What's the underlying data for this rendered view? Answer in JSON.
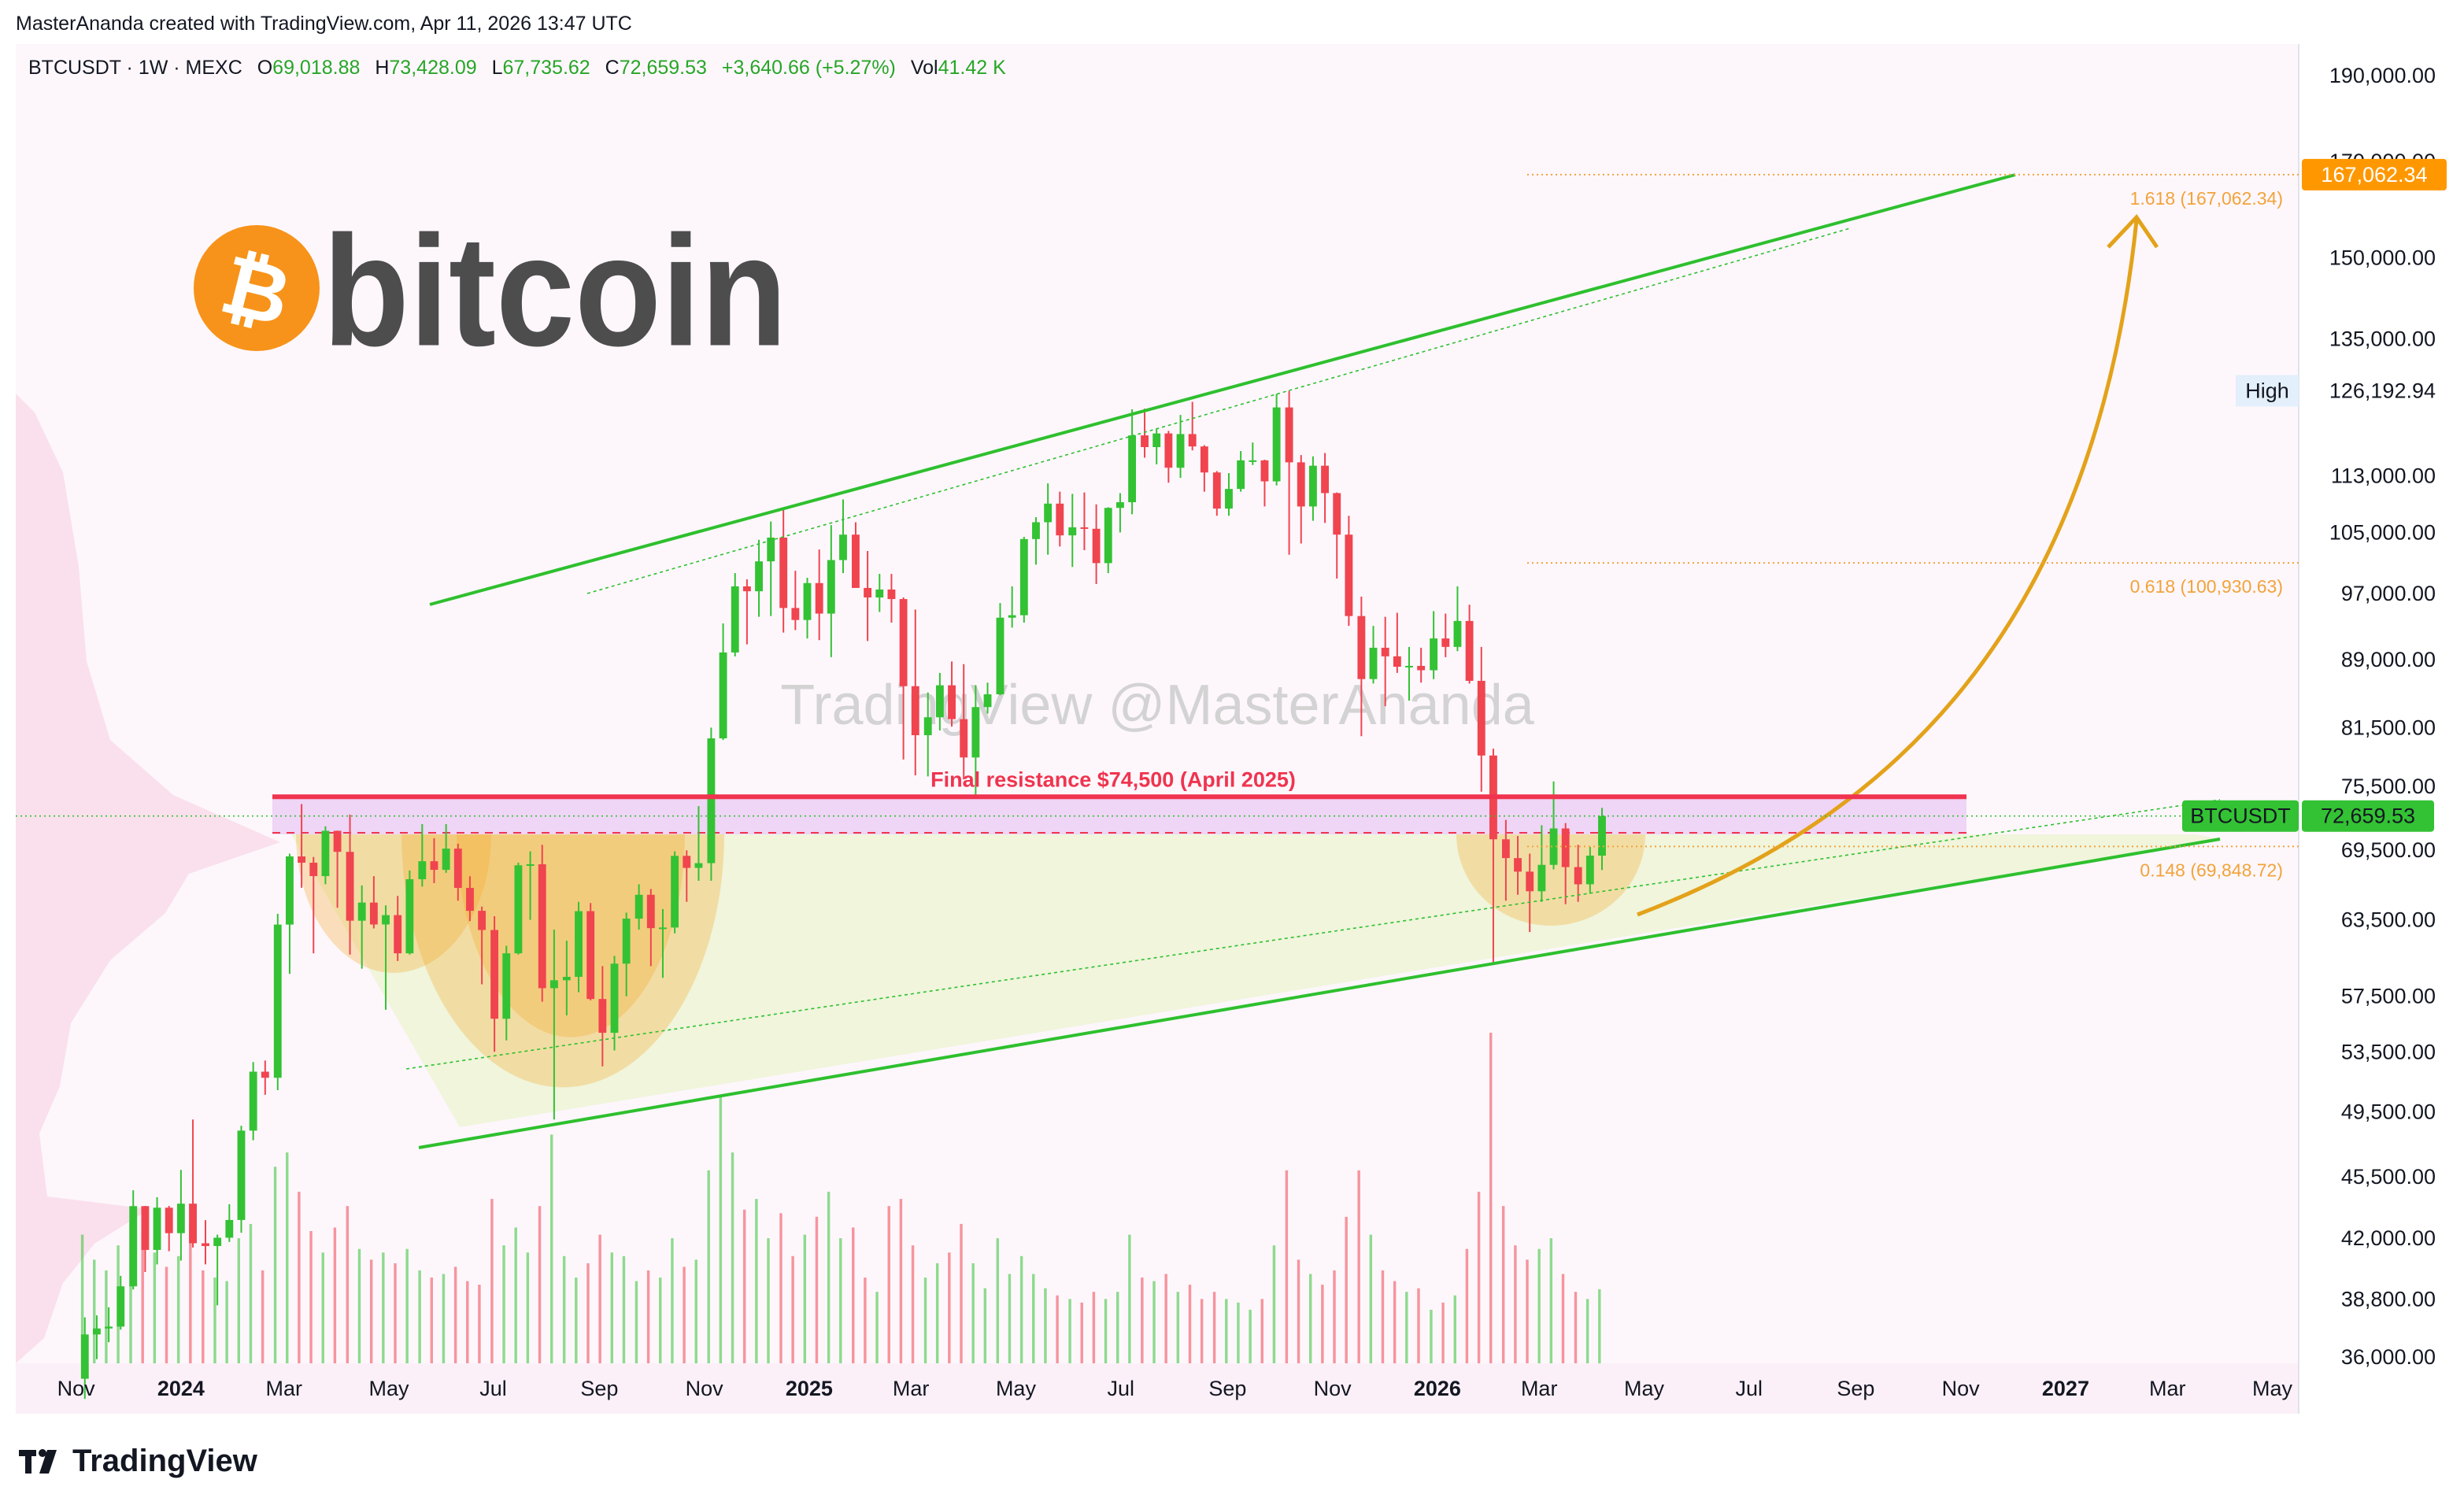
{
  "attribution": "MasterAnanda created with TradingView.com, Apr 11, 2026 13:47 UTC",
  "header": {
    "symbol": "BTCUSDT · 1W · MEXC",
    "open_label": "O",
    "open": "69,018.88",
    "high_label": "H",
    "high": "73,428.09",
    "low_label": "L",
    "low": "67,735.62",
    "close_label": "C",
    "close": "72,659.53",
    "change": "+3,640.66 (+5.27%)",
    "volume_label": "Vol",
    "volume": "41.42 K"
  },
  "logo_icon": "₿",
  "logo_text": "bitcoin",
  "watermark": "TradingView @MasterAnanda",
  "footer_brand": "TradingView",
  "chart_data": {
    "type": "candlestick",
    "log_scale": true,
    "grid": false,
    "up_color": "#33c233",
    "down_color": "#f0444f",
    "x": [
      2023.847,
      2023.866,
      2023.885,
      2023.904,
      2023.924,
      2023.943,
      2023.962,
      2023.981,
      2024.0,
      2024.019,
      2024.039,
      2024.058,
      2024.077,
      2024.096,
      2024.115,
      2024.134,
      2024.154,
      2024.173,
      2024.192,
      2024.211,
      2024.23,
      2024.249,
      2024.269,
      2024.288,
      2024.307,
      2024.326,
      2024.345,
      2024.364,
      2024.384,
      2024.403,
      2024.422,
      2024.441,
      2024.46,
      2024.479,
      2024.499,
      2024.518,
      2024.537,
      2024.556,
      2024.575,
      2024.594,
      2024.614,
      2024.633,
      2024.652,
      2024.671,
      2024.69,
      2024.709,
      2024.729,
      2024.748,
      2024.767,
      2024.786,
      2024.805,
      2024.824,
      2024.844,
      2024.863,
      2024.882,
      2024.901,
      2024.92,
      2024.939,
      2024.959,
      2024.978,
      2024.997,
      2025.016,
      2025.035,
      2025.054,
      2025.074,
      2025.093,
      2025.112,
      2025.131,
      2025.15,
      2025.169,
      2025.189,
      2025.208,
      2025.227,
      2025.246,
      2025.265,
      2025.284,
      2025.304,
      2025.323,
      2025.342,
      2025.361,
      2025.38,
      2025.399,
      2025.419,
      2025.438,
      2025.457,
      2025.476,
      2025.495,
      2025.514,
      2025.534,
      2025.553,
      2025.572,
      2025.591,
      2025.61,
      2025.629,
      2025.649,
      2025.668,
      2025.687,
      2025.706,
      2025.725,
      2025.744,
      2025.764,
      2025.783,
      2025.802,
      2025.821,
      2025.84,
      2025.859,
      2025.879,
      2025.898,
      2025.917,
      2025.936,
      2025.955,
      2025.974,
      2025.994,
      2026.013,
      2026.032,
      2026.051,
      2026.07,
      2026.089,
      2026.109,
      2026.128,
      2026.147,
      2026.166,
      2026.185,
      2026.204,
      2026.224,
      2026.243,
      2026.262
    ],
    "open": [
      35000,
      37070,
      37360,
      37450,
      39460,
      43790,
      41370,
      43700,
      42280,
      43930,
      41730,
      41580,
      42030,
      43010,
      48300,
      52140,
      51730,
      63110,
      68950,
      68390,
      67210,
      71280,
      69360,
      63430,
      64940,
      63120,
      63890,
      60800,
      66940,
      68520,
      67760,
      69650,
      66190,
      64250,
      62670,
      55850,
      60800,
      68160,
      68250,
      58110,
      58710,
      58970,
      64220,
      57300,
      54840,
      59990,
      63600,
      65600,
      62820,
      62870,
      69000,
      67930,
      68350,
      80370,
      89850,
      97900,
      97280,
      101130,
      104300,
      95190,
      93720,
      98320,
      94500,
      101300,
      104700,
      97700,
      96500,
      97500,
      96300,
      86000,
      80700,
      82600,
      86100,
      82400,
      78400,
      83700,
      85100,
      94000,
      94300,
      104100,
      106400,
      109000,
      104600,
      105700,
      105500,
      100900,
      108400,
      109200,
      119100,
      117300,
      119400,
      114200,
      119300,
      117400,
      113500,
      108300,
      111100,
      115300,
      115300,
      112200,
      123500,
      115000,
      108600,
      114500,
      110500,
      104700,
      94200,
      86800,
      90400,
      89400,
      88200,
      88300,
      87800,
      91500,
      90500,
      93600,
      86600,
      78600,
      70500,
      68800,
      67600,
      65900,
      68200,
      71500,
      68000,
      66500,
      69018.88
    ],
    "high": [
      37900,
      38000,
      38400,
      40000,
      44700,
      43800,
      44300,
      43800,
      45900,
      49000,
      43000,
      42200,
      43900,
      48600,
      52800,
      52900,
      64000,
      69200,
      73800,
      68900,
      71700,
      71300,
      72800,
      66400,
      67200,
      64700,
      65500,
      67700,
      71900,
      70600,
      71900,
      70100,
      67200,
      64600,
      63800,
      61400,
      68400,
      69400,
      70000,
      62700,
      61800,
      65000,
      64900,
      59800,
      60600,
      64100,
      66500,
      66100,
      64400,
      69400,
      69500,
      73600,
      81500,
      93300,
      99600,
      98800,
      104000,
      106500,
      108300,
      99900,
      99000,
      102700,
      106000,
      109600,
      106400,
      102500,
      99500,
      99500,
      96500,
      95000,
      85300,
      87500,
      88800,
      88500,
      86100,
      86400,
      95800,
      97900,
      104400,
      107100,
      111900,
      110700,
      110400,
      110600,
      108900,
      108500,
      110500,
      123200,
      123300,
      120200,
      119800,
      122300,
      124400,
      117600,
      113700,
      113400,
      116700,
      118000,
      115400,
      125700,
      126192.94,
      116100,
      115900,
      116400,
      110600,
      107300,
      96600,
      93000,
      94100,
      94600,
      90500,
      90400,
      94800,
      94500,
      97900,
      95600,
      90500,
      79300,
      72300,
      70800,
      69200,
      71800,
      76000,
      72000,
      70000,
      69800,
      73428.09
    ],
    "low": [
      34100,
      35900,
      36700,
      37300,
      39300,
      40200,
      40600,
      41300,
      40800,
      41500,
      40600,
      38500,
      41800,
      42300,
      47700,
      50600,
      50900,
      59200,
      66200,
      60800,
      66500,
      64500,
      60700,
      59600,
      62800,
      56500,
      60200,
      60700,
      66300,
      66600,
      67500,
      65100,
      63400,
      58400,
      53500,
      54300,
      60700,
      63500,
      57100,
      49000,
      56100,
      57800,
      57200,
      52500,
      53600,
      57500,
      62700,
      59800,
      58900,
      62400,
      65000,
      66800,
      66800,
      80200,
      89400,
      90800,
      94100,
      94200,
      92200,
      92500,
      91500,
      91300,
      89300,
      99600,
      97800,
      91200,
      94700,
      93400,
      78200,
      76600,
      76500,
      81200,
      81600,
      76200,
      74500,
      83000,
      85000,
      92800,
      93400,
      100700,
      102000,
      103100,
      100400,
      102600,
      98200,
      99600,
      105000,
      107500,
      115700,
      114700,
      112000,
      112700,
      116800,
      110700,
      107300,
      107300,
      110700,
      114600,
      108600,
      111600,
      102000,
      103500,
      106600,
      106300,
      98900,
      93000,
      80600,
      86300,
      83800,
      87500,
      84400,
      86400,
      86800,
      89300,
      90000,
      86300,
      75000,
      60100,
      65100,
      65600,
      62500,
      65000,
      67800,
      64800,
      65000,
      65700,
      67735.62
    ],
    "close": [
      37070,
      37360,
      37450,
      39460,
      43790,
      41370,
      43700,
      42280,
      43930,
      41730,
      41580,
      42030,
      43010,
      48300,
      52140,
      51730,
      63110,
      68950,
      68390,
      67210,
      71280,
      69360,
      63430,
      64940,
      63120,
      63890,
      60800,
      66940,
      68520,
      67760,
      69650,
      66190,
      64250,
      62670,
      55850,
      60800,
      68160,
      68250,
      58110,
      58710,
      58970,
      64220,
      57300,
      54840,
      59990,
      63600,
      65600,
      62820,
      62870,
      69000,
      67930,
      68350,
      80370,
      89850,
      97900,
      97280,
      101130,
      104300,
      95190,
      93720,
      98320,
      94500,
      101300,
      104700,
      97700,
      96500,
      97500,
      96300,
      86000,
      80700,
      82600,
      86100,
      82400,
      78400,
      83700,
      85100,
      94000,
      94300,
      104100,
      106400,
      109000,
      104600,
      105700,
      105500,
      100900,
      108400,
      109200,
      119100,
      117300,
      119400,
      114200,
      119300,
      117400,
      113500,
      108300,
      111100,
      115300,
      115300,
      112200,
      123500,
      115000,
      108600,
      114500,
      110500,
      104700,
      94200,
      86800,
      90400,
      89400,
      88200,
      88300,
      87800,
      91500,
      90500,
      93600,
      86600,
      78600,
      70500,
      68800,
      67600,
      65900,
      68200,
      71500,
      68000,
      66500,
      69018.88,
      72659.53
    ],
    "volume": [
      72,
      58,
      52,
      66,
      80,
      74,
      62,
      54,
      60,
      78,
      52,
      48,
      46,
      70,
      78,
      52,
      110,
      118,
      96,
      74,
      62,
      76,
      88,
      64,
      58,
      62,
      56,
      64,
      52,
      48,
      50,
      54,
      46,
      44,
      92,
      66,
      76,
      62,
      88,
      128,
      60,
      48,
      56,
      72,
      62,
      60,
      46,
      52,
      48,
      70,
      54,
      58,
      108,
      150,
      118,
      86,
      92,
      70,
      84,
      60,
      72,
      82,
      96,
      70,
      76,
      48,
      40,
      88,
      92,
      66,
      48,
      56,
      62,
      78,
      56,
      42,
      70,
      50,
      60,
      50,
      42,
      38,
      36,
      34,
      40,
      36,
      40,
      72,
      48,
      46,
      50,
      40,
      44,
      36,
      40,
      36,
      34,
      30,
      36,
      66,
      108,
      58,
      50,
      44,
      52,
      82,
      108,
      72,
      52,
      46,
      40,
      42,
      30,
      34,
      38,
      64,
      96,
      185,
      88,
      66,
      58,
      64,
      70,
      50,
      40,
      36,
      41.42
    ],
    "xlim": [
      2023.737,
      2027.371
    ],
    "xticks": [
      {
        "value": 2023.833,
        "label": "Nov"
      },
      {
        "value": 2024,
        "label": "2024"
      },
      {
        "value": 2024.164,
        "label": "Mar"
      },
      {
        "value": 2024.331,
        "label": "May"
      },
      {
        "value": 2024.497,
        "label": "Jul"
      },
      {
        "value": 2024.666,
        "label": "Sep"
      },
      {
        "value": 2024.833,
        "label": "Nov"
      },
      {
        "value": 2025,
        "label": "2025"
      },
      {
        "value": 2025.162,
        "label": "Mar"
      },
      {
        "value": 2025.329,
        "label": "May"
      },
      {
        "value": 2025.496,
        "label": "Jul"
      },
      {
        "value": 2025.666,
        "label": "Sep"
      },
      {
        "value": 2025.833,
        "label": "Nov"
      },
      {
        "value": 2026,
        "label": "2026"
      },
      {
        "value": 2026.162,
        "label": "Mar"
      },
      {
        "value": 2026.329,
        "label": "May"
      },
      {
        "value": 2026.496,
        "label": "Jul"
      },
      {
        "value": 2026.666,
        "label": "Sep"
      },
      {
        "value": 2026.833,
        "label": "Nov"
      },
      {
        "value": 2027,
        "label": "2027"
      },
      {
        "value": 2027.162,
        "label": "Mar"
      },
      {
        "value": 2027.329,
        "label": "May"
      }
    ],
    "ylim": [
      35707,
      197930
    ],
    "yticks": [
      {
        "value": 190000,
        "label": "190,000.00"
      },
      {
        "value": 170000,
        "label": "170,000.00"
      },
      {
        "value": 150000,
        "label": "150,000.00"
      },
      {
        "value": 135000,
        "label": "135,000.00"
      },
      {
        "value": 113000,
        "label": "113,000.00"
      },
      {
        "value": 105000,
        "label": "105,000.00"
      },
      {
        "value": 97000,
        "label": "97,000.00"
      },
      {
        "value": 89000,
        "label": "89,000.00"
      },
      {
        "value": 81500,
        "label": "81,500.00"
      },
      {
        "value": 75500,
        "label": "75,500.00"
      },
      {
        "value": 69500,
        "label": "69,500.00"
      },
      {
        "value": 63500,
        "label": "63,500.00"
      },
      {
        "value": 57500,
        "label": "57,500.00"
      },
      {
        "value": 53500,
        "label": "53,500.00"
      },
      {
        "value": 49500,
        "label": "49,500.00"
      },
      {
        "value": 45500,
        "label": "45,500.00"
      },
      {
        "value": 42000,
        "label": "42,000.00"
      },
      {
        "value": 38800,
        "label": "38,800.00"
      },
      {
        "value": 36000,
        "label": "36,000.00"
      }
    ],
    "resistance": {
      "label": "Final resistance $74,500 (April 2025)",
      "value": 74500,
      "color": "#f0344f"
    },
    "fib_color": "#f2a33a",
    "fib_levels": [
      {
        "label": "1.618 (167,062.34)",
        "value": 167062.34,
        "axis_label": "167,062.34"
      },
      {
        "label": "0.618 (100,930.63)",
        "value": 100930.63
      },
      {
        "label": "0.148 (69,848.72)",
        "value": 69848.72
      }
    ],
    "high_marker": {
      "label": "High",
      "price_label": "126,192.94"
    },
    "last_price": {
      "symbol": "BTCUSDT",
      "price_label": "72,659.53"
    }
  }
}
